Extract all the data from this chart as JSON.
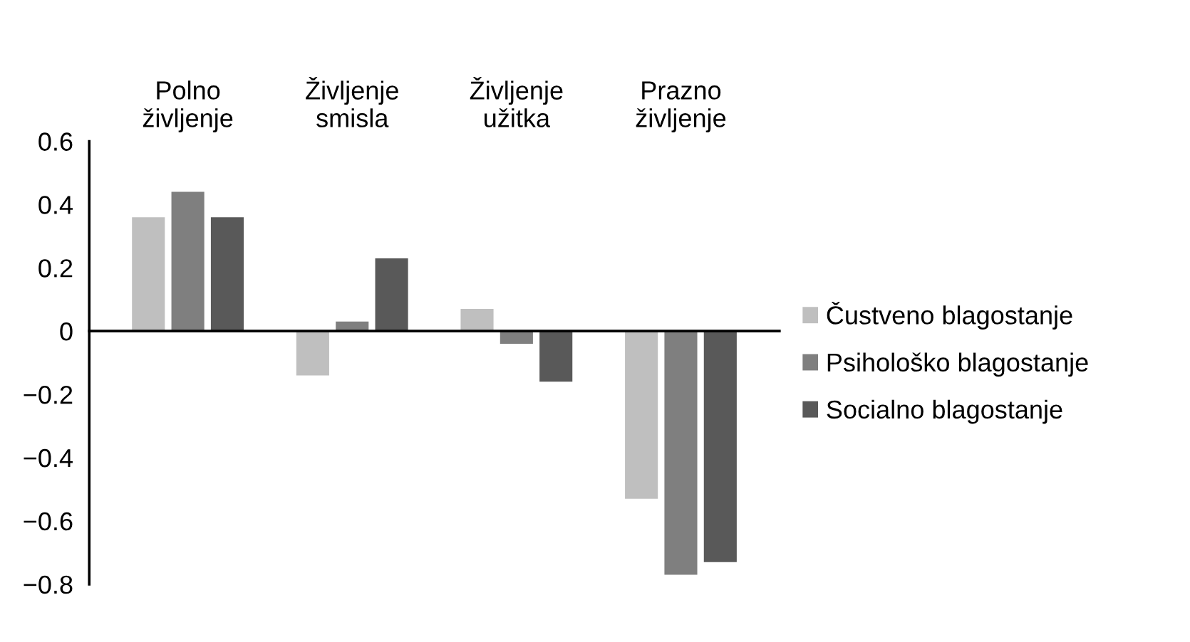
{
  "chart_data": {
    "type": "bar",
    "categories": [
      "Polno\nživljenje",
      "Življenje\nsmisla",
      "Življenje\nužitka",
      "Prazno\nživljenje"
    ],
    "series": [
      {
        "name": "Čustveno blagostanje",
        "color": "#bfbfbf",
        "values": [
          0.36,
          -0.14,
          0.07,
          -0.53
        ]
      },
      {
        "name": "Psihološko blagostanje",
        "color": "#7f7f7f",
        "values": [
          0.44,
          0.03,
          -0.04,
          -0.77
        ]
      },
      {
        "name": "Socialno blagostanje",
        "color": "#595959",
        "values": [
          0.36,
          0.23,
          -0.16,
          -0.73
        ]
      }
    ],
    "ylim": [
      -0.8,
      0.6
    ],
    "yticks": [
      {
        "value": -0.8,
        "label": "−0.8"
      },
      {
        "value": -0.6,
        "label": "−0.6"
      },
      {
        "value": -0.4,
        "label": "−0.4"
      },
      {
        "value": -0.2,
        "label": "−0.2"
      },
      0,
      0.2,
      0.4,
      0.6
    ],
    "legend": "right"
  }
}
